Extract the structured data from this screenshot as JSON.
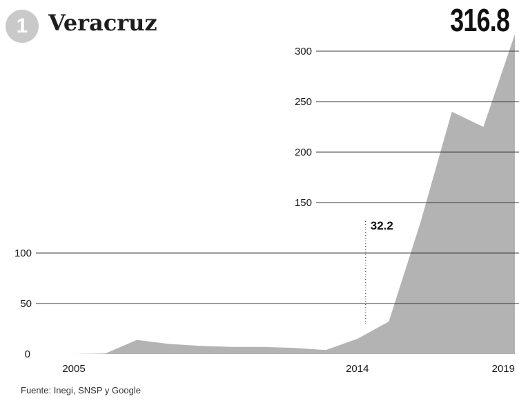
{
  "header": {
    "rank": "1",
    "title": "Veracruz",
    "headline_value": "316.8"
  },
  "source": "Fuente: Inegi, SNSP y Google",
  "colors": {
    "area": "#b3b3b3",
    "grid": "#3a3a3a",
    "text": "#1a1a1a",
    "badge": "#c9c9c9"
  },
  "chart_data": {
    "type": "area",
    "title": "Veracruz",
    "x_tick_labels": [
      "2005",
      "2014",
      "2019"
    ],
    "y_tick_labels": [
      "0",
      "50",
      "100",
      "150",
      "200",
      "250",
      "300"
    ],
    "ylim": [
      0,
      316.8
    ],
    "xlim": [
      2005,
      2019
    ],
    "grid": true,
    "x": [
      2005,
      2006,
      2007,
      2008,
      2009,
      2010,
      2011,
      2012,
      2013,
      2014,
      2015,
      2016,
      2017,
      2018,
      2019
    ],
    "values": [
      0,
      0.5,
      14,
      10,
      8,
      7,
      7,
      6,
      4,
      15,
      32.2,
      130,
      240,
      225,
      316.8
    ],
    "annotations": [
      {
        "label": "32.2",
        "x": 2014,
        "value": 32.2
      }
    ]
  }
}
